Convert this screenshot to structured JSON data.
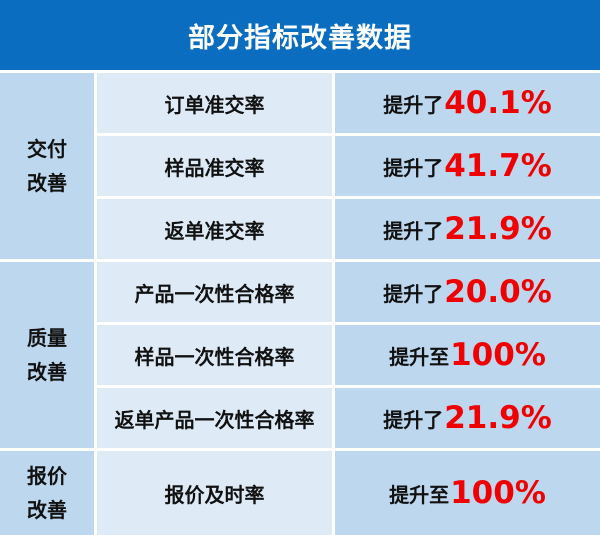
{
  "title": "部分指标改善数据",
  "colors": {
    "header": "#0a6dbf",
    "group_bg": "#bdd7ee",
    "name_bg": "#deebf7",
    "value_bg": "#bdd7ee",
    "highlight": "#f00000"
  },
  "groups": [
    {
      "label_line1": "交付",
      "label_line2": "改善",
      "rows": [
        {
          "metric": "订单准交率",
          "prefix": "提升了",
          "value": "40.1%"
        },
        {
          "metric": "样品准交率",
          "prefix": "提升了",
          "value": "41.7%"
        },
        {
          "metric": "返单准交率",
          "prefix": "提升了",
          "value": "21.9%"
        }
      ]
    },
    {
      "label_line1": "质量",
      "label_line2": "改善",
      "rows": [
        {
          "metric": "产品一次性合格率",
          "prefix": "提升了",
          "value": "20.0%"
        },
        {
          "metric": "样品一次性合格率",
          "prefix": "提升至",
          "value": "100%"
        },
        {
          "metric": "返单产品一次性合格率",
          "prefix": "提升了",
          "value": "21.9%"
        }
      ]
    },
    {
      "label_line1": "报价",
      "label_line2": "改善",
      "rows": [
        {
          "metric": "报价及时率",
          "prefix": "提升至",
          "value": "100%"
        }
      ]
    }
  ]
}
